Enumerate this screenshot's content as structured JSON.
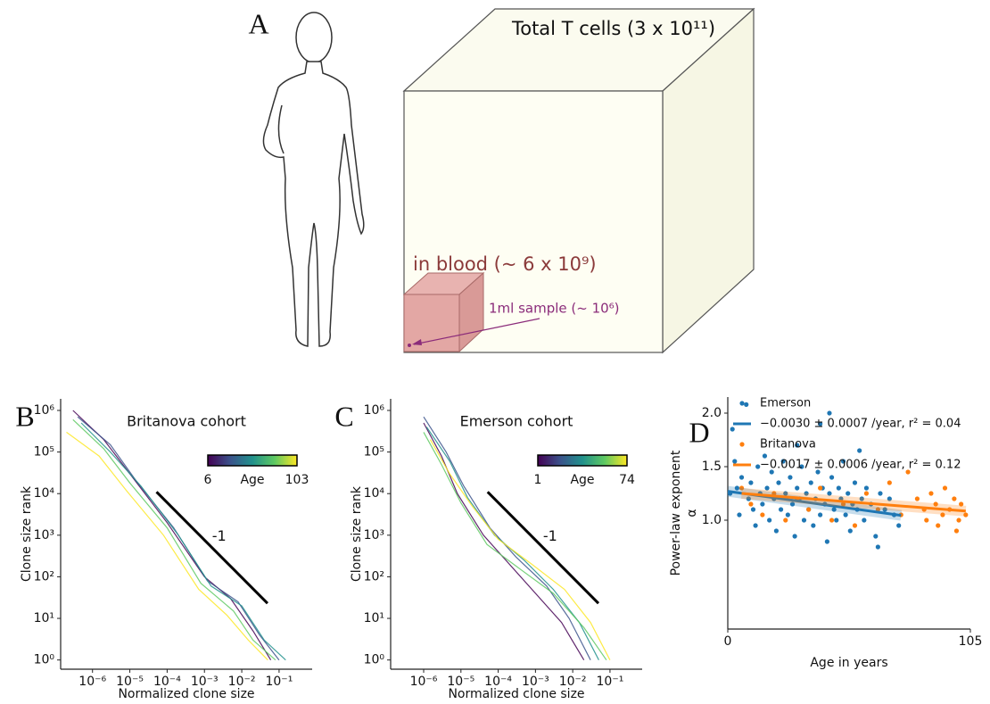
{
  "figure": {
    "panel_labels": [
      "A",
      "B",
      "C",
      "D"
    ]
  },
  "diagram": {
    "total_label": "Total T cells (3 x 10¹¹)",
    "blood_label": "in blood (~ 6 x 10⁹)",
    "sample_label": "1ml sample (~ 10⁶)"
  },
  "chart_data": [
    {
      "type": "line",
      "title": "Britanova cohort",
      "xlabel": "Normalized clone size",
      "ylabel": "Clone size rank",
      "xlog": true,
      "ylog": true,
      "xlim": [
        1.4e-07,
        0.77
      ],
      "ylim": [
        0.6,
        1900000
      ],
      "xticks": [
        {
          "value": 1e-06,
          "label": "10⁻⁶"
        },
        {
          "value": 1e-05,
          "label": "10⁻⁵"
        },
        {
          "value": 0.0001,
          "label": "10⁻⁴"
        },
        {
          "value": 0.001,
          "label": "10⁻³"
        },
        {
          "value": 0.01,
          "label": "10⁻²"
        },
        {
          "value": 0.1,
          "label": "10⁻¹"
        }
      ],
      "yticks": [
        {
          "value": 1,
          "label": "10⁰"
        },
        {
          "value": 10,
          "label": "10¹"
        },
        {
          "value": 100,
          "label": "10²"
        },
        {
          "value": 1000,
          "label": "10³"
        },
        {
          "value": 10000,
          "label": "10⁴"
        },
        {
          "value": 100000,
          "label": "10⁵"
        },
        {
          "value": 1000000,
          "label": "10⁶"
        }
      ],
      "series": [
        {
          "color": "#440154",
          "x": [
            3e-07,
            2e-06,
            1e-05,
            0.0001,
            0.001,
            0.005,
            0.02,
            0.06
          ],
          "values": [
            1000000,
            200000,
            30000,
            2000,
            100,
            30,
            5,
            1
          ]
        },
        {
          "color": "#3b528b",
          "x": [
            4e-07,
            3e-06,
            1.5e-05,
            0.00015,
            0.0012,
            0.008,
            0.03,
            0.1
          ],
          "values": [
            700000,
            150000,
            20000,
            1500,
            80,
            25,
            4,
            1
          ]
        },
        {
          "color": "#21918c",
          "x": [
            5e-07,
            3e-06,
            2e-05,
            0.0002,
            0.0015,
            0.01,
            0.04,
            0.15
          ],
          "values": [
            500000,
            100000,
            15000,
            1000,
            60,
            20,
            3,
            1
          ]
        },
        {
          "color": "#5ec962",
          "x": [
            3e-07,
            2e-06,
            1e-05,
            0.0001,
            0.0008,
            0.006,
            0.02,
            0.08
          ],
          "values": [
            600000,
            120000,
            18000,
            1500,
            70,
            15,
            3,
            1
          ]
        },
        {
          "color": "#fde725",
          "x": [
            2e-07,
            1.5e-06,
            8e-06,
            8e-05,
            0.0007,
            0.004,
            0.015,
            0.05
          ],
          "values": [
            300000,
            80000,
            12000,
            1000,
            50,
            12,
            3,
            1
          ]
        }
      ],
      "annotation": {
        "text": "-1",
        "x": [
          5.2e-05,
          0.049
        ],
        "y": [
          11000,
          23
        ]
      },
      "colorbar": {
        "label": "Age",
        "min": 6,
        "max": 103,
        "colormap": [
          "#440154",
          "#3b528b",
          "#21918c",
          "#5ec962",
          "#fde725"
        ]
      }
    },
    {
      "type": "line",
      "title": "Emerson cohort",
      "xlabel": "Normalized clone size",
      "ylabel": "Clone size rank",
      "xlog": true,
      "ylog": true,
      "xlim": [
        1.3e-07,
        0.73
      ],
      "ylim": [
        0.6,
        1900000
      ],
      "xticks": [
        {
          "value": 1e-06,
          "label": "10⁻⁶"
        },
        {
          "value": 1e-05,
          "label": "10⁻⁵"
        },
        {
          "value": 0.0001,
          "label": "10⁻⁴"
        },
        {
          "value": 0.001,
          "label": "10⁻³"
        },
        {
          "value": 0.01,
          "label": "10⁻²"
        },
        {
          "value": 0.1,
          "label": "10⁻¹"
        }
      ],
      "yticks": [
        {
          "value": 1,
          "label": "10⁰"
        },
        {
          "value": 10,
          "label": "10¹"
        },
        {
          "value": 100,
          "label": "10²"
        },
        {
          "value": 1000,
          "label": "10³"
        },
        {
          "value": 10000,
          "label": "10⁴"
        },
        {
          "value": 100000,
          "label": "10⁵"
        },
        {
          "value": 1000000,
          "label": "10⁶"
        }
      ],
      "series": [
        {
          "color": "#440154",
          "x": [
            1e-06,
            3e-06,
            8e-06,
            4e-05,
            0.0002,
            0.001,
            0.005,
            0.02
          ],
          "values": [
            500000,
            80000,
            10000,
            1000,
            200,
            40,
            8,
            1
          ]
        },
        {
          "color": "#3b528b",
          "x": [
            1e-06,
            4e-06,
            1.2e-05,
            6e-05,
            0.0003,
            0.002,
            0.008,
            0.03
          ],
          "values": [
            700000,
            100000,
            15000,
            1500,
            300,
            60,
            10,
            1
          ]
        },
        {
          "color": "#21918c",
          "x": [
            1.2e-06,
            5e-06,
            1.5e-05,
            8e-05,
            0.0005,
            0.003,
            0.015,
            0.05
          ],
          "values": [
            400000,
            60000,
            8000,
            1000,
            250,
            50,
            8,
            1
          ]
        },
        {
          "color": "#5ec962",
          "x": [
            1e-06,
            3e-06,
            1e-05,
            5e-05,
            0.0004,
            0.003,
            0.02,
            0.08
          ],
          "values": [
            300000,
            50000,
            6000,
            600,
            150,
            40,
            6,
            1
          ]
        },
        {
          "color": "#fde725",
          "x": [
            1.5e-06,
            5e-06,
            2e-05,
            0.0001,
            0.0008,
            0.006,
            0.03,
            0.1
          ],
          "values": [
            200000,
            30000,
            5000,
            800,
            200,
            50,
            8,
            1
          ]
        }
      ],
      "annotation": {
        "text": "-1",
        "x": [
          5.2e-05,
          0.049
        ],
        "y": [
          11000,
          23
        ]
      },
      "colorbar": {
        "label": "Age",
        "min": 1,
        "max": 74,
        "colormap": [
          "#440154",
          "#3b528b",
          "#21918c",
          "#5ec962",
          "#fde725"
        ]
      }
    },
    {
      "type": "scatter",
      "xlabel": "Age in years",
      "ylabel": "Power-law exponent",
      "ylabel_symbol": "α",
      "xlim": [
        0,
        105
      ],
      "ylim": [
        0.65,
        2.15
      ],
      "xticks": [
        0,
        105
      ],
      "yticks": [
        {
          "value": 1,
          "label": "1.0"
        },
        1.5,
        {
          "value": 2,
          "label": "2.0"
        }
      ],
      "series": [
        {
          "name": "Emerson",
          "color": "#1f77b4",
          "x": [
            1,
            2,
            3,
            4,
            5,
            6,
            8,
            9,
            10,
            11,
            12,
            13,
            14,
            15,
            16,
            17,
            18,
            19,
            20,
            21,
            22,
            23,
            24,
            25,
            26,
            27,
            28,
            29,
            30,
            31,
            32,
            33,
            34,
            35,
            36,
            37,
            38,
            39,
            40,
            41,
            42,
            43,
            44,
            45,
            46,
            47,
            48,
            49,
            50,
            51,
            52,
            53,
            54,
            55,
            56,
            57,
            58,
            59,
            60,
            62,
            64,
            66,
            68,
            70,
            72,
            74,
            40,
            44,
            30,
            65
          ],
          "values": [
            1.25,
            1.85,
            1.55,
            1.3,
            1.05,
            1.4,
            2.08,
            1.2,
            1.35,
            1.1,
            0.95,
            1.5,
            1.25,
            1.15,
            1.6,
            1.3,
            1.0,
            1.45,
            1.2,
            0.9,
            1.35,
            1.1,
            1.55,
            1.25,
            1.05,
            1.4,
            1.15,
            0.85,
            1.3,
            1.2,
            1.5,
            1.0,
            1.25,
            1.1,
            1.35,
            0.95,
            1.2,
            1.45,
            1.05,
            1.3,
            1.15,
            0.8,
            1.25,
            1.4,
            1.1,
            1.0,
            1.3,
            1.2,
            1.55,
            1.05,
            1.25,
            0.9,
            1.15,
            1.35,
            1.1,
            1.65,
            1.2,
            1.0,
            1.3,
            1.15,
            0.85,
            1.25,
            1.1,
            1.2,
            1.05,
            0.95,
            1.9,
            2.0,
            1.7,
            0.75
          ],
          "fit": {
            "label": "−0.0030 ± 0.0007 /year, r² = 0.04",
            "x": [
              0,
              75
            ],
            "values": [
              1.27,
              1.045
            ]
          }
        },
        {
          "name": "Britanova",
          "color": "#ff7f0e",
          "x": [
            6,
            10,
            15,
            20,
            25,
            30,
            35,
            40,
            45,
            50,
            55,
            60,
            65,
            70,
            75,
            78,
            82,
            85,
            86,
            88,
            90,
            91,
            93,
            94,
            96,
            98,
            99,
            100,
            101,
            103
          ],
          "values": [
            1.3,
            1.15,
            1.05,
            1.25,
            1.0,
            1.2,
            1.1,
            1.3,
            1.0,
            1.15,
            0.95,
            1.25,
            1.1,
            1.35,
            1.05,
            1.45,
            1.2,
            1.1,
            1.0,
            1.25,
            1.15,
            0.95,
            1.05,
            1.3,
            1.1,
            1.2,
            0.9,
            1.0,
            1.15,
            1.05
          ],
          "fit": {
            "label": "−0.0017 ± 0.0006 /year, r² = 0.12",
            "x": [
              6,
              103
            ],
            "values": [
              1.25,
              1.085
            ]
          }
        }
      ]
    }
  ]
}
